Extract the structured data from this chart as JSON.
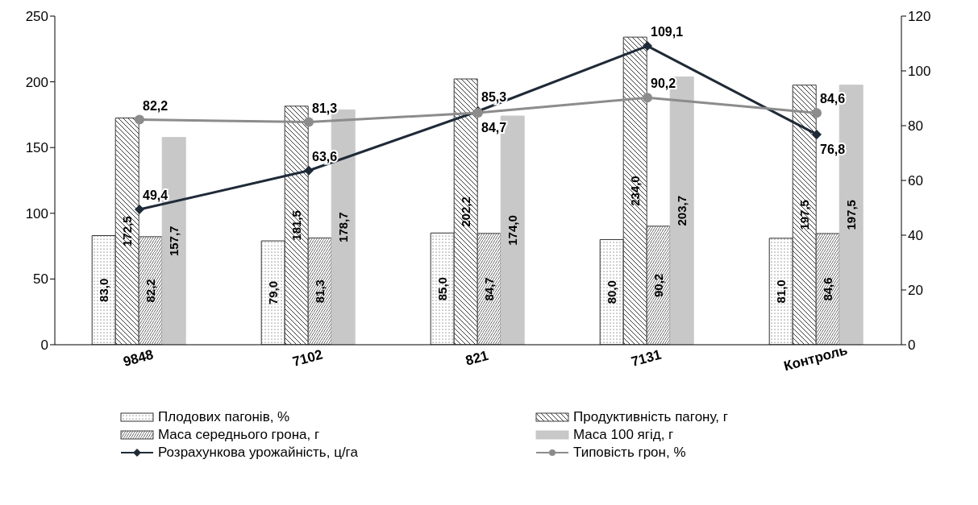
{
  "chart_data": {
    "type": "bar",
    "categories": [
      "9848",
      "7102",
      "821",
      "7131",
      "Контроль"
    ],
    "series": [
      {
        "name": "Плодових пагонів, %",
        "color": "#303030",
        "values": [
          83.0,
          79.0,
          85.0,
          80.0,
          81.0
        ],
        "value_labels": [
          "83,0",
          "79,0",
          "85,0",
          "80,0",
          "81,0"
        ]
      },
      {
        "name": "Продуктивність пагону, г",
        "color": "#383838",
        "values": [
          172.5,
          181.5,
          202.2,
          234.0,
          197.5
        ],
        "value_labels": [
          "172,5",
          "181,5",
          "202,2",
          "234,0",
          "197,5"
        ]
      },
      {
        "name": "Маса середнього грона, г",
        "color": "#404040",
        "values": [
          82.2,
          81.3,
          84.7,
          90.2,
          84.6
        ],
        "value_labels": [
          "82,2",
          "81,3",
          "84,7",
          "90,2",
          "84,6"
        ]
      },
      {
        "name": "Маса 100 ягід, г",
        "color": "#c8c8c8",
        "values": [
          157.7,
          178.7,
          174.0,
          203.7,
          197.5
        ],
        "value_labels": [
          "157,7",
          "178,7",
          "174,0",
          "203,7",
          "197,5"
        ]
      },
      {
        "name": "Розрахункова урожайність, ц/га",
        "type": "line",
        "axis": "y2",
        "marker": "diamond",
        "color": "#1f2a38",
        "values": [
          49.4,
          63.6,
          85.3,
          109.1,
          76.8
        ],
        "value_labels": [
          "49,4",
          "63,6",
          "85,3",
          "109,1",
          "76,8"
        ]
      },
      {
        "name": "Типовість грон, %",
        "type": "line",
        "axis": "y2",
        "marker": "circle",
        "color": "#8c8c8c",
        "values": [
          82.2,
          81.3,
          84.7,
          90.2,
          84.6
        ],
        "value_labels": [
          "82,2",
          "81,3",
          "84,7",
          "90,2",
          "84,6"
        ]
      }
    ],
    "ylim": [
      0,
      250
    ],
    "yticks": [
      0,
      50,
      100,
      150,
      200,
      250
    ],
    "y2lim": [
      0,
      120
    ],
    "y2ticks": [
      0,
      20,
      40,
      60,
      80,
      100,
      120
    ],
    "legend": "bottom",
    "grid": false
  }
}
